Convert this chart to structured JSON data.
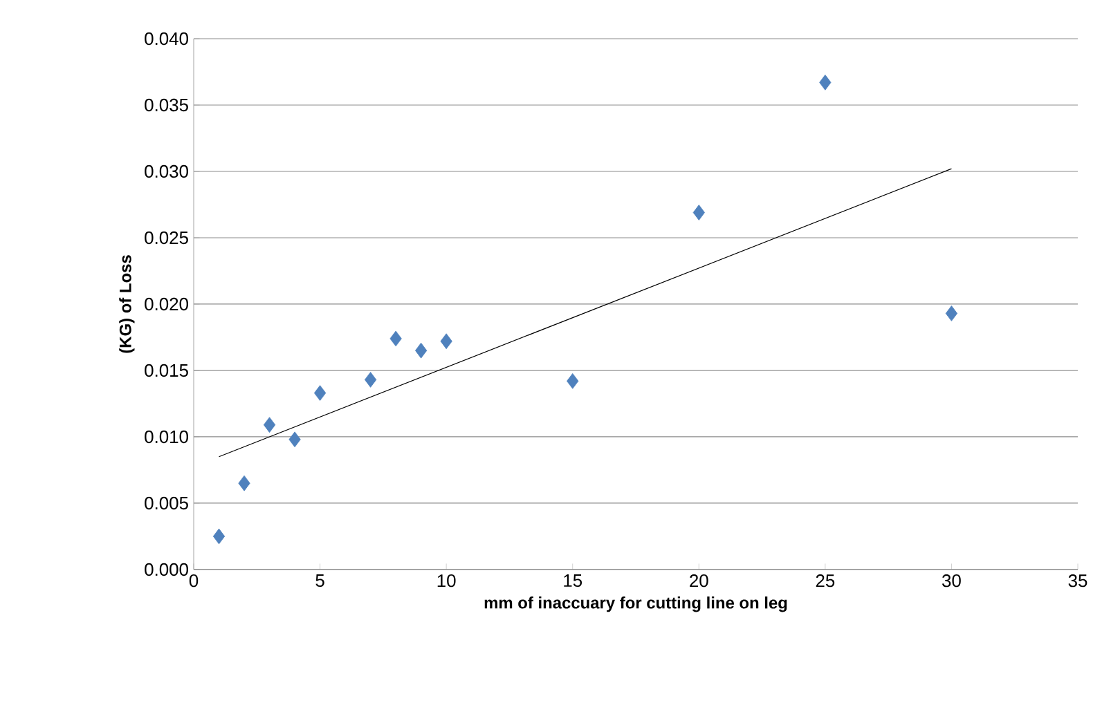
{
  "chart_data": {
    "type": "scatter",
    "xlabel": "mm of inaccuary for cutting line on leg",
    "ylabel": "(KG) of Loss",
    "xlim": [
      0,
      35
    ],
    "ylim": [
      0,
      0.04
    ],
    "xticks": [
      0,
      5,
      10,
      15,
      20,
      25,
      30,
      35
    ],
    "yticks": [
      {
        "value": 0,
        "label": "0.000"
      },
      {
        "value": 0.005,
        "label": "0.005"
      },
      {
        "value": 0.01,
        "label": "0.010"
      },
      {
        "value": 0.015,
        "label": "0.015"
      },
      {
        "value": 0.02,
        "label": "0.020"
      },
      {
        "value": 0.025,
        "label": "0.025"
      },
      {
        "value": 0.03,
        "label": "0.030"
      },
      {
        "value": 0.035,
        "label": "0.035"
      },
      {
        "value": 0.04,
        "label": "0.040"
      }
    ],
    "grid": "y",
    "marker": "diamond",
    "series": [
      {
        "color": "#4f81bd",
        "x": [
          1,
          2,
          3,
          4,
          5,
          7,
          8,
          9,
          10,
          15,
          20,
          25,
          30
        ],
        "values": [
          0.0025,
          0.0065,
          0.0109,
          0.0098,
          0.0133,
          0.0143,
          0.0174,
          0.0165,
          0.0172,
          0.0142,
          0.0269,
          0.0367,
          0.0193
        ]
      },
      {
        "type": "line",
        "color": "#000000",
        "marker": "none",
        "line_style": "solid",
        "x": [
          1,
          30
        ],
        "values": [
          0.0085,
          0.0302
        ]
      }
    ]
  }
}
